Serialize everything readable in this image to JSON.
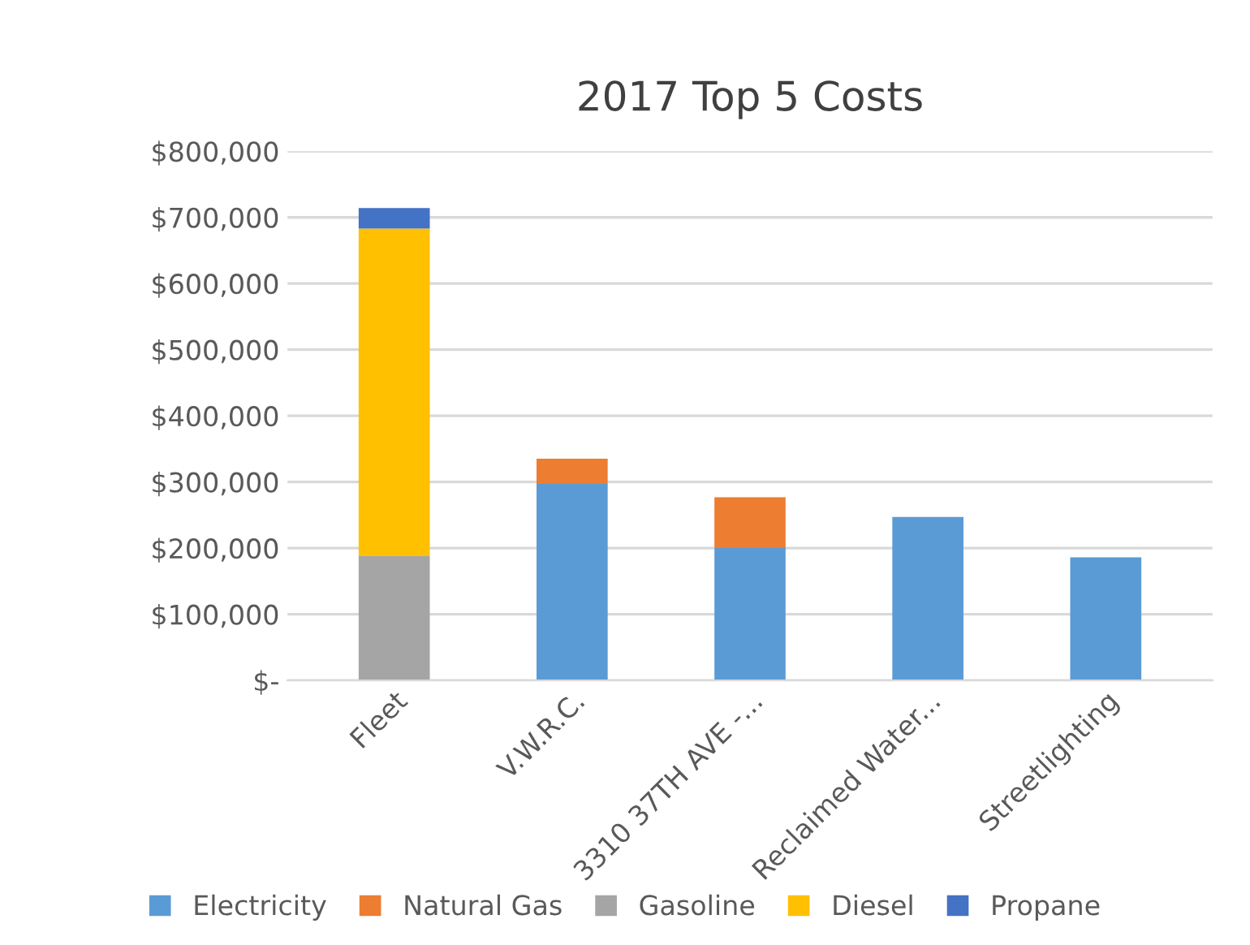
{
  "chart_data": {
    "type": "bar",
    "title": "2017 Top 5 Costs",
    "stacked": true,
    "categories": [
      "Fleet",
      "V.W.R.C.",
      "3310 37TH AVE -...",
      "Reclaimed Water...",
      "Streetlighting"
    ],
    "series": [
      {
        "name": "Electricity",
        "color": "#5b9bd5",
        "values": [
          null,
          297000,
          200000,
          247000,
          186000
        ]
      },
      {
        "name": "Natural Gas",
        "color": "#ed7d31",
        "values": [
          null,
          38000,
          77000,
          null,
          null
        ]
      },
      {
        "name": "Gasoline",
        "color": "#a5a5a5",
        "values": [
          188000,
          null,
          null,
          null,
          null
        ]
      },
      {
        "name": "Diesel",
        "color": "#ffc000",
        "values": [
          495000,
          null,
          null,
          null,
          null
        ]
      },
      {
        "name": "Propane",
        "color": "#4472c4",
        "values": [
          31000,
          null,
          null,
          null,
          null
        ]
      }
    ],
    "ylim": [
      0,
      800000
    ],
    "yticks": [
      {
        "value": 0,
        "label": "$-"
      },
      {
        "value": 100000,
        "label": "$100,000"
      },
      {
        "value": 200000,
        "label": "$200,000"
      },
      {
        "value": 300000,
        "label": "$300,000"
      },
      {
        "value": 400000,
        "label": "$400,000"
      },
      {
        "value": 500000,
        "label": "$500,000"
      },
      {
        "value": 600000,
        "label": "$600,000"
      },
      {
        "value": 700000,
        "label": "$700,000"
      },
      {
        "value": 800000,
        "label": "$800,000"
      }
    ],
    "grid": "y",
    "legend": "bottom"
  }
}
